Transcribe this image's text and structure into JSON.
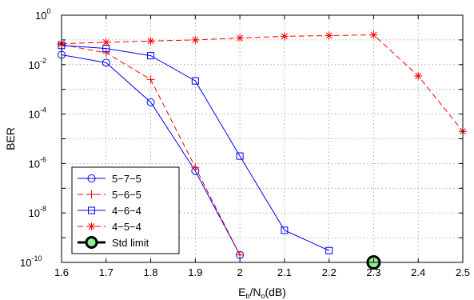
{
  "chart_data": {
    "type": "line",
    "title": "",
    "xlabel": "E_b/N_o(dB)",
    "xlabel_parts": {
      "base": "E",
      "sub1": "b",
      "mid": "/N",
      "sub2": "o",
      "tail": "(dB)"
    },
    "ylabel": "BER",
    "y_scale": "log",
    "xlim": [
      1.6,
      2.5
    ],
    "ylim": [
      1e-10,
      1
    ],
    "grid": true,
    "legend_position": "bottom-left",
    "x_ticks": [
      "1.6",
      "1.7",
      "1.8",
      "1.9",
      "2",
      "2.1",
      "2.2",
      "2.3",
      "2.4",
      "2.5"
    ],
    "y_tick_exponents": [
      "0",
      "-2",
      "-4",
      "-6",
      "-8",
      "-10"
    ],
    "series": [
      {
        "name": "5−7−5",
        "color": "#0000ff",
        "marker": "circle",
        "line": "solid",
        "x": [
          1.6,
          1.7,
          1.8,
          1.9,
          2.0
        ],
        "y": [
          0.025,
          0.012,
          0.0003,
          5e-07,
          2e-10
        ]
      },
      {
        "name": "5−6−5",
        "color": "#ff0000",
        "marker": "plus",
        "line": "dashed",
        "x": [
          1.6,
          1.7,
          1.8,
          1.9,
          2.0
        ],
        "y": [
          0.065,
          0.03,
          0.0025,
          7e-07,
          2e-10
        ]
      },
      {
        "name": "4−6−4",
        "color": "#0000ff",
        "marker": "square",
        "line": "solid",
        "x": [
          1.6,
          1.7,
          1.8,
          1.9,
          2.0,
          2.1,
          2.2
        ],
        "y": [
          0.06,
          0.045,
          0.023,
          0.0022,
          2e-06,
          2e-09,
          3e-10
        ]
      },
      {
        "name": "4−5−4",
        "color": "#ff0000",
        "marker": "star",
        "line": "dashed",
        "x": [
          1.6,
          1.7,
          1.8,
          1.9,
          2.0,
          2.1,
          2.2,
          2.3,
          2.4,
          2.5
        ],
        "y": [
          0.07,
          0.08,
          0.09,
          0.1,
          0.12,
          0.14,
          0.15,
          0.16,
          0.0035,
          2e-05
        ]
      }
    ],
    "std_limit": {
      "name": "Std limit",
      "x": 2.3,
      "y": 1e-10,
      "color": "#90ee90"
    }
  }
}
